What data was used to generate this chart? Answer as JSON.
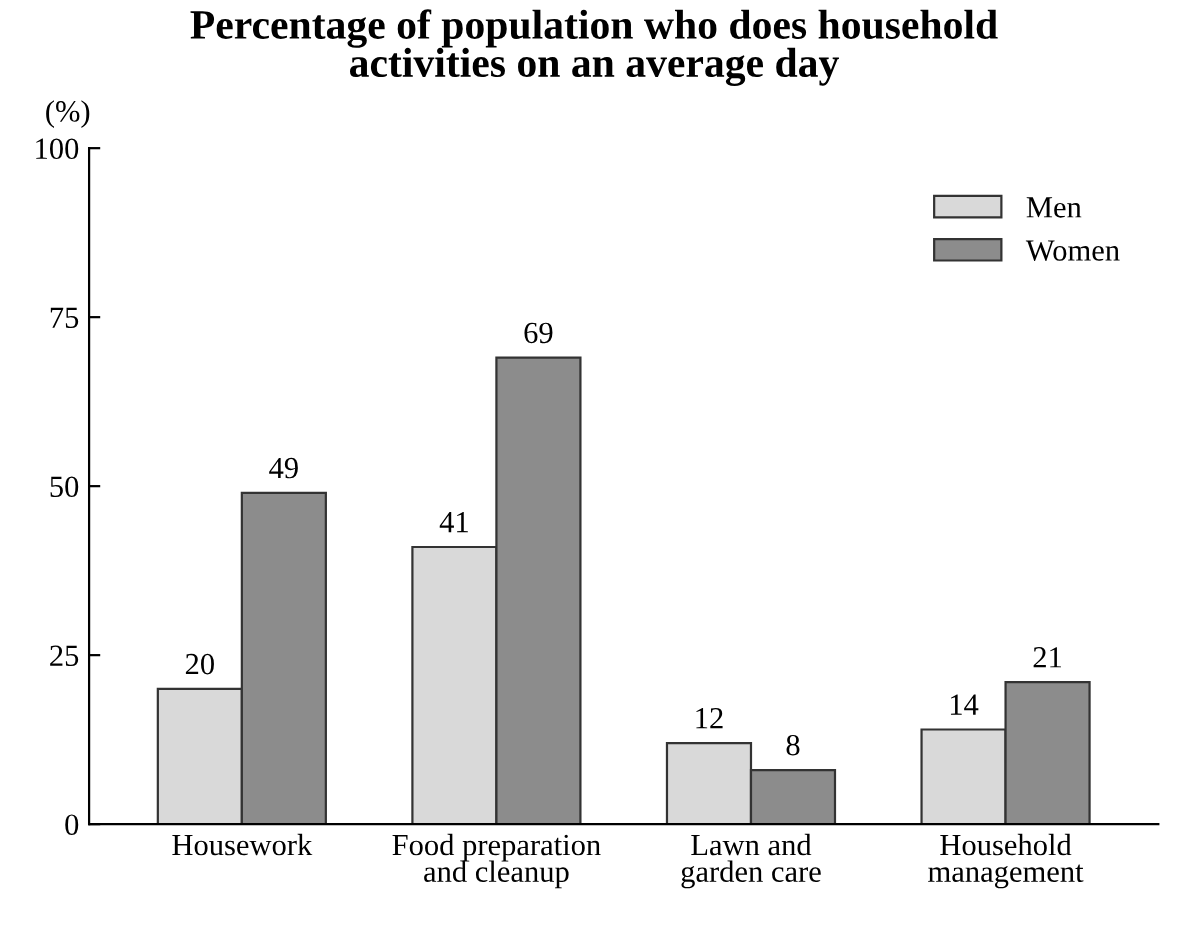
{
  "chart_data": {
    "type": "bar",
    "title": "Percentage of population who does household\nactivities on an average day",
    "ylabel": "(%)",
    "categories": [
      "Housework",
      "Food preparation\nand cleanup",
      "Lawn and\ngarden care",
      "Household\nmanagement"
    ],
    "series": [
      {
        "name": "Men",
        "color": "#d9d9d9",
        "values": [
          20,
          41,
          12,
          14
        ]
      },
      {
        "name": "Women",
        "color": "#8c8c8c",
        "values": [
          49,
          69,
          8,
          21
        ]
      }
    ],
    "ylim": [
      0,
      100
    ],
    "yticks": [
      0,
      25,
      50,
      75,
      100
    ],
    "grid": false,
    "legend": "top right",
    "data_labels": true
  }
}
